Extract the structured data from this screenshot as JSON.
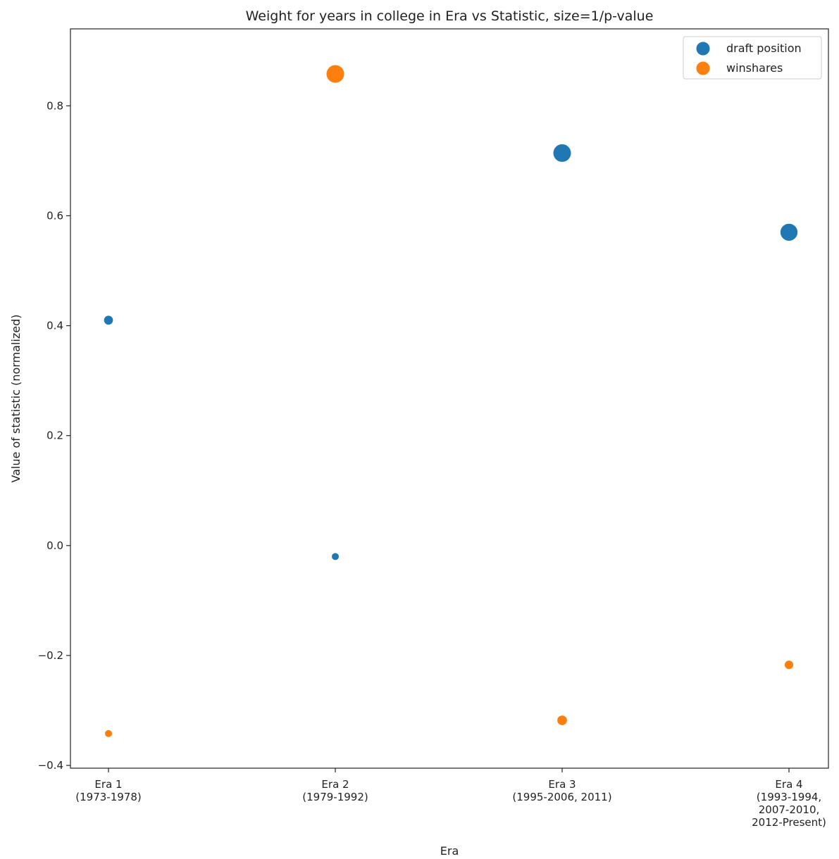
{
  "chart_data": {
    "type": "scatter",
    "title": "Weight for years in college in Era vs Statistic, size=1/p-value",
    "xlabel": "Era",
    "ylabel": "Value of statistic (normalized)",
    "categories": [
      [
        "Era 1",
        "(1973-1978)"
      ],
      [
        "Era 2",
        "(1979-1992)"
      ],
      [
        "Era 3",
        "(1995-2006, 2011)"
      ],
      [
        "Era 4",
        "(1993-1994,",
        "2007-2010,",
        "2012-Present)"
      ]
    ],
    "ylim": [
      -0.405,
      0.94
    ],
    "yticks": [
      -0.4,
      -0.2,
      0.0,
      0.2,
      0.4,
      0.6,
      0.8
    ],
    "ytick_labels": [
      "−0.4",
      "−0.2",
      "0.0",
      "0.2",
      "0.4",
      "0.6",
      "0.8"
    ],
    "grid": false,
    "legend_position": "top-right",
    "series": [
      {
        "name": "draft position",
        "color": "#1f77b4",
        "values": [
          0.41,
          -0.02,
          0.714,
          0.57
        ],
        "size_rel": [
          0.12,
          0.04,
          1.0,
          0.92
        ]
      },
      {
        "name": "winshares",
        "color": "#ff7f0e",
        "values": [
          -0.342,
          0.858,
          -0.318,
          -0.217
        ],
        "size_rel": [
          0.04,
          1.0,
          0.16,
          0.1
        ]
      }
    ]
  }
}
